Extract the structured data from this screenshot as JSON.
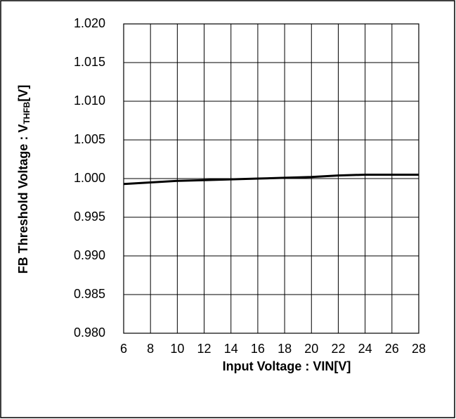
{
  "chart_data": {
    "type": "line",
    "x_label": "Input Voltage : VIN[V]",
    "y_label": {
      "text": "FB Threshold Voltage : V",
      "subscript": "THFB",
      "unit": "[V]"
    },
    "x": [
      6,
      8,
      10,
      12,
      14,
      16,
      18,
      20,
      22,
      24,
      26,
      28
    ],
    "series": [
      {
        "color": "#000000",
        "values": [
          0.9993,
          0.9995,
          0.9997,
          0.9998,
          0.9999,
          1.0,
          1.0001,
          1.0002,
          1.0004,
          1.0005,
          1.0005,
          1.0005
        ]
      }
    ],
    "xlim": [
      6,
      28
    ],
    "xticks": [
      6,
      8,
      10,
      12,
      14,
      16,
      18,
      20,
      22,
      24,
      26,
      28
    ],
    "ylim": [
      0.98,
      1.02
    ],
    "yticks": [
      {
        "value": 0.98,
        "label": "0.980"
      },
      0.985,
      {
        "value": 0.99,
        "label": "0.990"
      },
      0.995,
      {
        "value": 1,
        "label": "1.000"
      },
      1.005,
      {
        "value": 1.01,
        "label": "1.010"
      },
      1.015,
      {
        "value": 1.02,
        "label": "1.020"
      }
    ],
    "grid": true
  }
}
